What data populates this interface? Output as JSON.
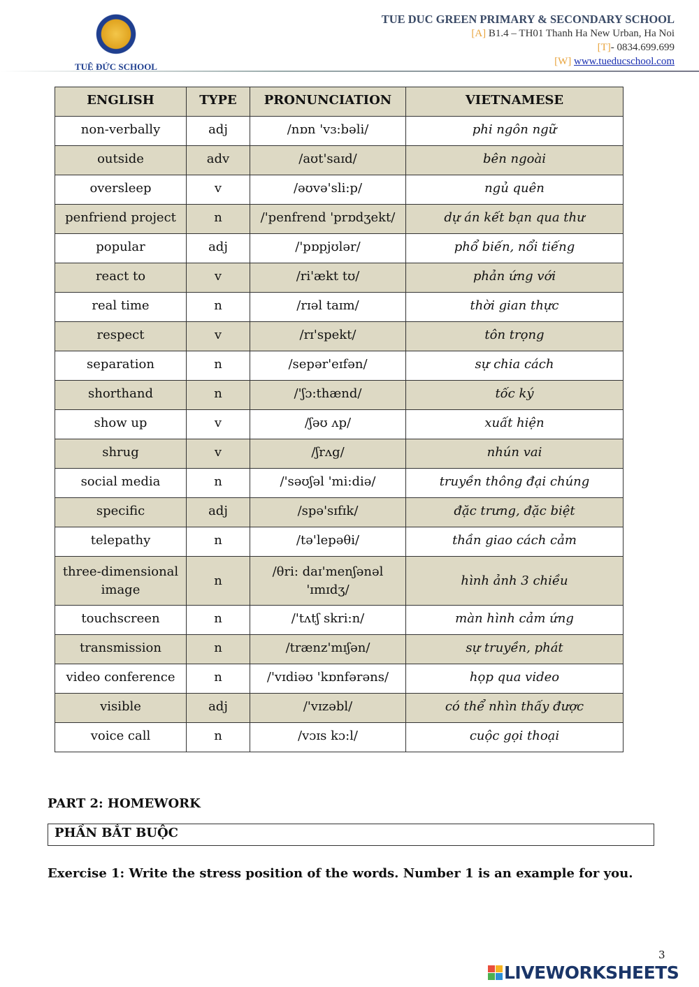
{
  "header": {
    "logo_text": "TUỆ ĐỨC SCHOOL",
    "school": "TUE DUC GREEN PRIMARY & SECONDARY SCHOOL",
    "address_tag": "[A]",
    "address": " B1.4 – TH01 Thanh Ha New Urban, Ha Noi",
    "phone_tag": "[T]",
    "phone": "- 0834.699.699",
    "web_tag": "[W]",
    "web": "www.tueducschool.com"
  },
  "table": {
    "headers": [
      "ENGLISH",
      "TYPE",
      "PRONUNCIATION",
      "VIETNAMESE"
    ],
    "rows": [
      [
        "non-verbally",
        "adj",
        "/nɒn 'vɜ:bəli/",
        "phi ngôn ngữ"
      ],
      [
        "outside",
        "adv",
        "/aʊt'saɪd/",
        "bên ngoài"
      ],
      [
        "oversleep",
        "v",
        "/əʊvə'sli:p/",
        "ngủ quên"
      ],
      [
        "penfriend project",
        "n",
        "/'penfrend 'prɒdʒekt/",
        "dự án kết bạn qua thư"
      ],
      [
        "popular",
        "adj",
        "/'pɒpjʊlər/",
        "phổ biến, nổi tiếng"
      ],
      [
        "react to",
        "v",
        "/ri'ækt tʊ/",
        "phản ứng với"
      ],
      [
        "real time",
        "n",
        "/rɪəl taɪm/",
        "thời gian thực"
      ],
      [
        "respect",
        "v",
        "/rɪ'spekt/",
        "tôn trọng"
      ],
      [
        "separation",
        "n",
        "/sepər'eɪfən/",
        "sự chia cách"
      ],
      [
        "shorthand",
        "n",
        "/'ʃɔ:thænd/",
        "tốc ký"
      ],
      [
        "show up",
        "v",
        "/ʃəʊ ʌp/",
        "xuất hiện"
      ],
      [
        "shrug",
        "v",
        "/ʃrʌg/",
        "nhún vai"
      ],
      [
        "social media",
        "n",
        "/'səʊʃəl 'mi:diə/",
        "truyền thông đại chúng"
      ],
      [
        "specific",
        "adj",
        "/spə'sɪfɪk/",
        "đặc trưng, đặc biệt"
      ],
      [
        "telepathy",
        "n",
        "/tə'lepəθi/",
        "thần giao cách cảm"
      ],
      [
        "three-dimensional image",
        "n",
        "/θri: daɪ'menʃənəl 'ɪmɪdʒ/",
        "hình ảnh 3 chiều"
      ],
      [
        "touchscreen",
        "n",
        "/'tʌtʃ skri:n/",
        "màn hình cảm ứng"
      ],
      [
        "transmission",
        "n",
        "/trænz'mɪʃən/",
        "sự truyền, phát"
      ],
      [
        "video conference",
        "n",
        "/'vɪdiəʊ 'kɒnfərəns/",
        "họp qua video"
      ],
      [
        "visible",
        "adj",
        "/'vɪzəbl/",
        "có thể nhìn thấy được"
      ],
      [
        "voice call",
        "n",
        "/vɔɪs kɔ:l/",
        "cuộc gọi thoại"
      ]
    ]
  },
  "part2": {
    "title": "PART 2: HOMEWORK",
    "box": "PHẦN BẮT BUỘC",
    "exercise": "Exercise 1: Write the stress position of the words. Number 1 is an example for you."
  },
  "page_number": "3",
  "watermark": "LIVEWORKSHEETS",
  "colors": {
    "shade": "#ddd9c4",
    "tag": "#e8a33c",
    "link": "#1a2fb0"
  }
}
